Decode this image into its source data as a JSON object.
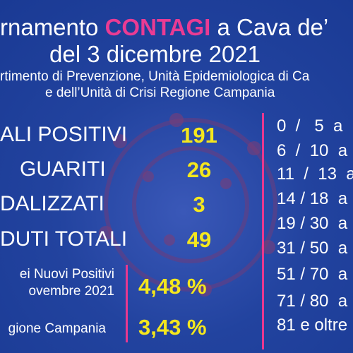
{
  "header": {
    "title_start": "rnamento ",
    "title_highlight": "CONTAGI",
    "title_end": " a Cava de’",
    "subtitle": "del 3 dicembre 2021",
    "source": [
      "rtimento di Prevenzione, Unità Epidemiologica di Ca",
      "e dell’Unità di Crisi Regione Campania"
    ]
  },
  "stats": [
    {
      "label": "ALI POSITIVI",
      "value": 191
    },
    {
      "label": "GUARITI",
      "value": 26
    },
    {
      "label": "DALIZZATI",
      "value": 3
    },
    {
      "label": "DUTI TOTALI",
      "value": 49
    }
  ],
  "percents": [
    {
      "label": [
        "ei Nuovi Positivi",
        "ovembre 2021"
      ],
      "value": "4,48 %"
    },
    {
      "label": [
        "gione Campania"
      ],
      "value": "3,43 %"
    }
  ],
  "age_groups": [
    "0  /   5  a",
    "6  /  10  a",
    "11  /  13  a",
    "14 / 18  a",
    "19 / 30  a",
    "31 / 50  a",
    "51 / 70  a",
    "71 / 80  a",
    "81 e oltre"
  ]
}
